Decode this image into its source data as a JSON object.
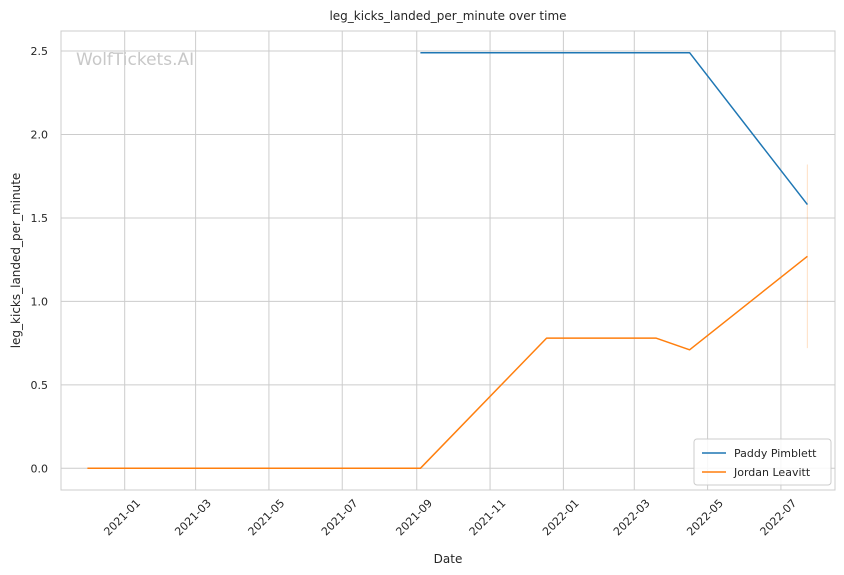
{
  "chart_data": {
    "type": "line",
    "title": "leg_kicks_landed_per_minute over time",
    "xlabel": "Date",
    "ylabel": "leg_kicks_landed_per_minute",
    "watermark": "WolfTickets.AI",
    "x_ticks": [
      "2021-01",
      "2021-03",
      "2021-05",
      "2021-07",
      "2021-09",
      "2021-11",
      "2022-01",
      "2022-03",
      "2022-05",
      "2022-07"
    ],
    "y_ticks": [
      "0.0",
      "0.5",
      "1.0",
      "1.5",
      "2.0",
      "2.5"
    ],
    "ylim": [
      -0.13,
      2.62
    ],
    "xlim": [
      "2020-11-09",
      "2022-08-15"
    ],
    "grid": true,
    "legend_position": "bottom-right",
    "series": [
      {
        "name": "Paddy Pimblett",
        "color": "#1f77b4",
        "points": [
          {
            "x": "2021-09-04",
            "y": 2.49
          },
          {
            "x": "2022-04-16",
            "y": 2.49
          },
          {
            "x": "2022-07-23",
            "y": 1.58
          }
        ]
      },
      {
        "name": "Jordan Leavitt",
        "color": "#ff7f0e",
        "points": [
          {
            "x": "2020-12-01",
            "y": 0.0
          },
          {
            "x": "2021-09-04",
            "y": 0.0
          },
          {
            "x": "2021-12-18",
            "y": 0.78
          },
          {
            "x": "2022-03-19",
            "y": 0.78
          },
          {
            "x": "2022-04-16",
            "y": 0.71
          },
          {
            "x": "2022-07-23",
            "y": 1.27
          }
        ],
        "error_band": {
          "x": "2022-07-23",
          "low": 0.72,
          "high": 1.82
        }
      }
    ]
  }
}
